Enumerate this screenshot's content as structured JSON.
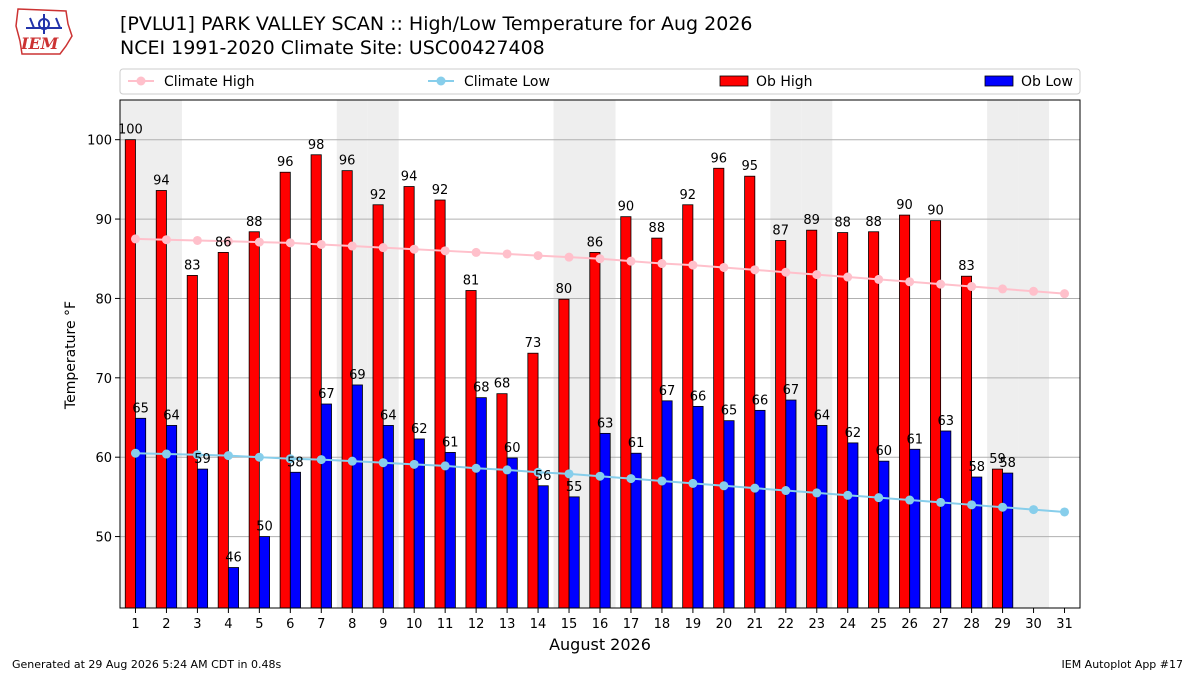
{
  "header": {
    "logo_text": "IEM",
    "title_line1": "[PVLU1] PARK VALLEY SCAN :: High/Low Temperature for Aug 2026",
    "title_line2": "NCEI 1991-2020 Climate Site: USC00427408"
  },
  "footer": {
    "generated": "Generated at 29 Aug 2026 5:24 AM CDT in 0.48s",
    "app": "IEM Autoplot App #17"
  },
  "colors": {
    "ob_high": "#ff0000",
    "ob_low": "#0000ff",
    "climate_high": "#ffc0cb",
    "climate_low": "#87ceeb",
    "weekend_band": "#eeeeee",
    "grid": "#b0b0b0"
  },
  "chart_data": {
    "type": "bar",
    "xlabel": "August 2026",
    "ylabel": "Temperature °F",
    "xlim": [
      0.5,
      31.5
    ],
    "ylim": [
      41,
      105
    ],
    "yticks": [
      50,
      60,
      70,
      80,
      90,
      100
    ],
    "grid": "y",
    "legend_position": "top",
    "categories": [
      "1",
      "2",
      "3",
      "4",
      "5",
      "6",
      "7",
      "8",
      "9",
      "10",
      "11",
      "12",
      "13",
      "14",
      "15",
      "16",
      "17",
      "18",
      "19",
      "20",
      "21",
      "22",
      "23",
      "24",
      "25",
      "26",
      "27",
      "28",
      "29",
      "30",
      "31"
    ],
    "shaded_days": [
      1,
      2,
      8,
      9,
      15,
      16,
      22,
      23,
      29,
      30
    ],
    "series": [
      {
        "name": "Ob High",
        "kind": "bar",
        "values": [
          100,
          93.6,
          82.9,
          85.8,
          88.4,
          95.9,
          98.1,
          96.1,
          91.8,
          94.1,
          92.4,
          81,
          68,
          73.1,
          79.9,
          85.8,
          90.3,
          87.6,
          91.8,
          96.4,
          95.4,
          87.3,
          88.6,
          88.3,
          88.4,
          90.5,
          89.8,
          82.8,
          58.5,
          null,
          null
        ],
        "labels": [
          "100",
          "94",
          "83",
          "86",
          "88",
          "96",
          "98",
          "96",
          "92",
          "94",
          "92",
          "81",
          "68",
          "73",
          "80",
          "86",
          "90",
          "88",
          "92",
          "96",
          "95",
          "87",
          "89",
          "88",
          "88",
          "90",
          "90",
          "83",
          "59",
          "",
          ""
        ]
      },
      {
        "name": "Ob Low",
        "kind": "bar",
        "values": [
          64.9,
          64,
          58.5,
          46.1,
          50,
          58.1,
          66.7,
          69.1,
          64,
          62.3,
          60.6,
          67.5,
          59.9,
          56.4,
          55,
          63,
          60.5,
          67.1,
          66.4,
          64.6,
          65.9,
          67.2,
          64,
          61.8,
          59.5,
          61,
          63.3,
          57.5,
          58,
          null,
          null
        ],
        "labels": [
          "65",
          "64",
          "59",
          "46",
          "50",
          "58",
          "67",
          "69",
          "64",
          "62",
          "61",
          "68",
          "60",
          "56",
          "55",
          "63",
          "61",
          "67",
          "66",
          "65",
          "66",
          "67",
          "64",
          "62",
          "60",
          "61",
          "63",
          "58",
          "58",
          "",
          ""
        ]
      },
      {
        "name": "Climate High",
        "kind": "line",
        "values": [
          87.5,
          87.4,
          87.3,
          87.2,
          87.1,
          87,
          86.8,
          86.6,
          86.4,
          86.2,
          86,
          85.8,
          85.6,
          85.4,
          85.2,
          85,
          84.7,
          84.4,
          84.2,
          83.9,
          83.6,
          83.3,
          83,
          82.7,
          82.4,
          82.1,
          81.8,
          81.5,
          81.2,
          80.9,
          80.6
        ]
      },
      {
        "name": "Climate Low",
        "kind": "line",
        "values": [
          60.5,
          60.4,
          60.3,
          60.2,
          60,
          59.8,
          59.7,
          59.5,
          59.3,
          59.1,
          58.9,
          58.6,
          58.4,
          58.1,
          57.9,
          57.6,
          57.3,
          57,
          56.7,
          56.4,
          56.1,
          55.8,
          55.5,
          55.2,
          54.9,
          54.6,
          54.3,
          54,
          53.7,
          53.4,
          53.1
        ]
      }
    ]
  }
}
